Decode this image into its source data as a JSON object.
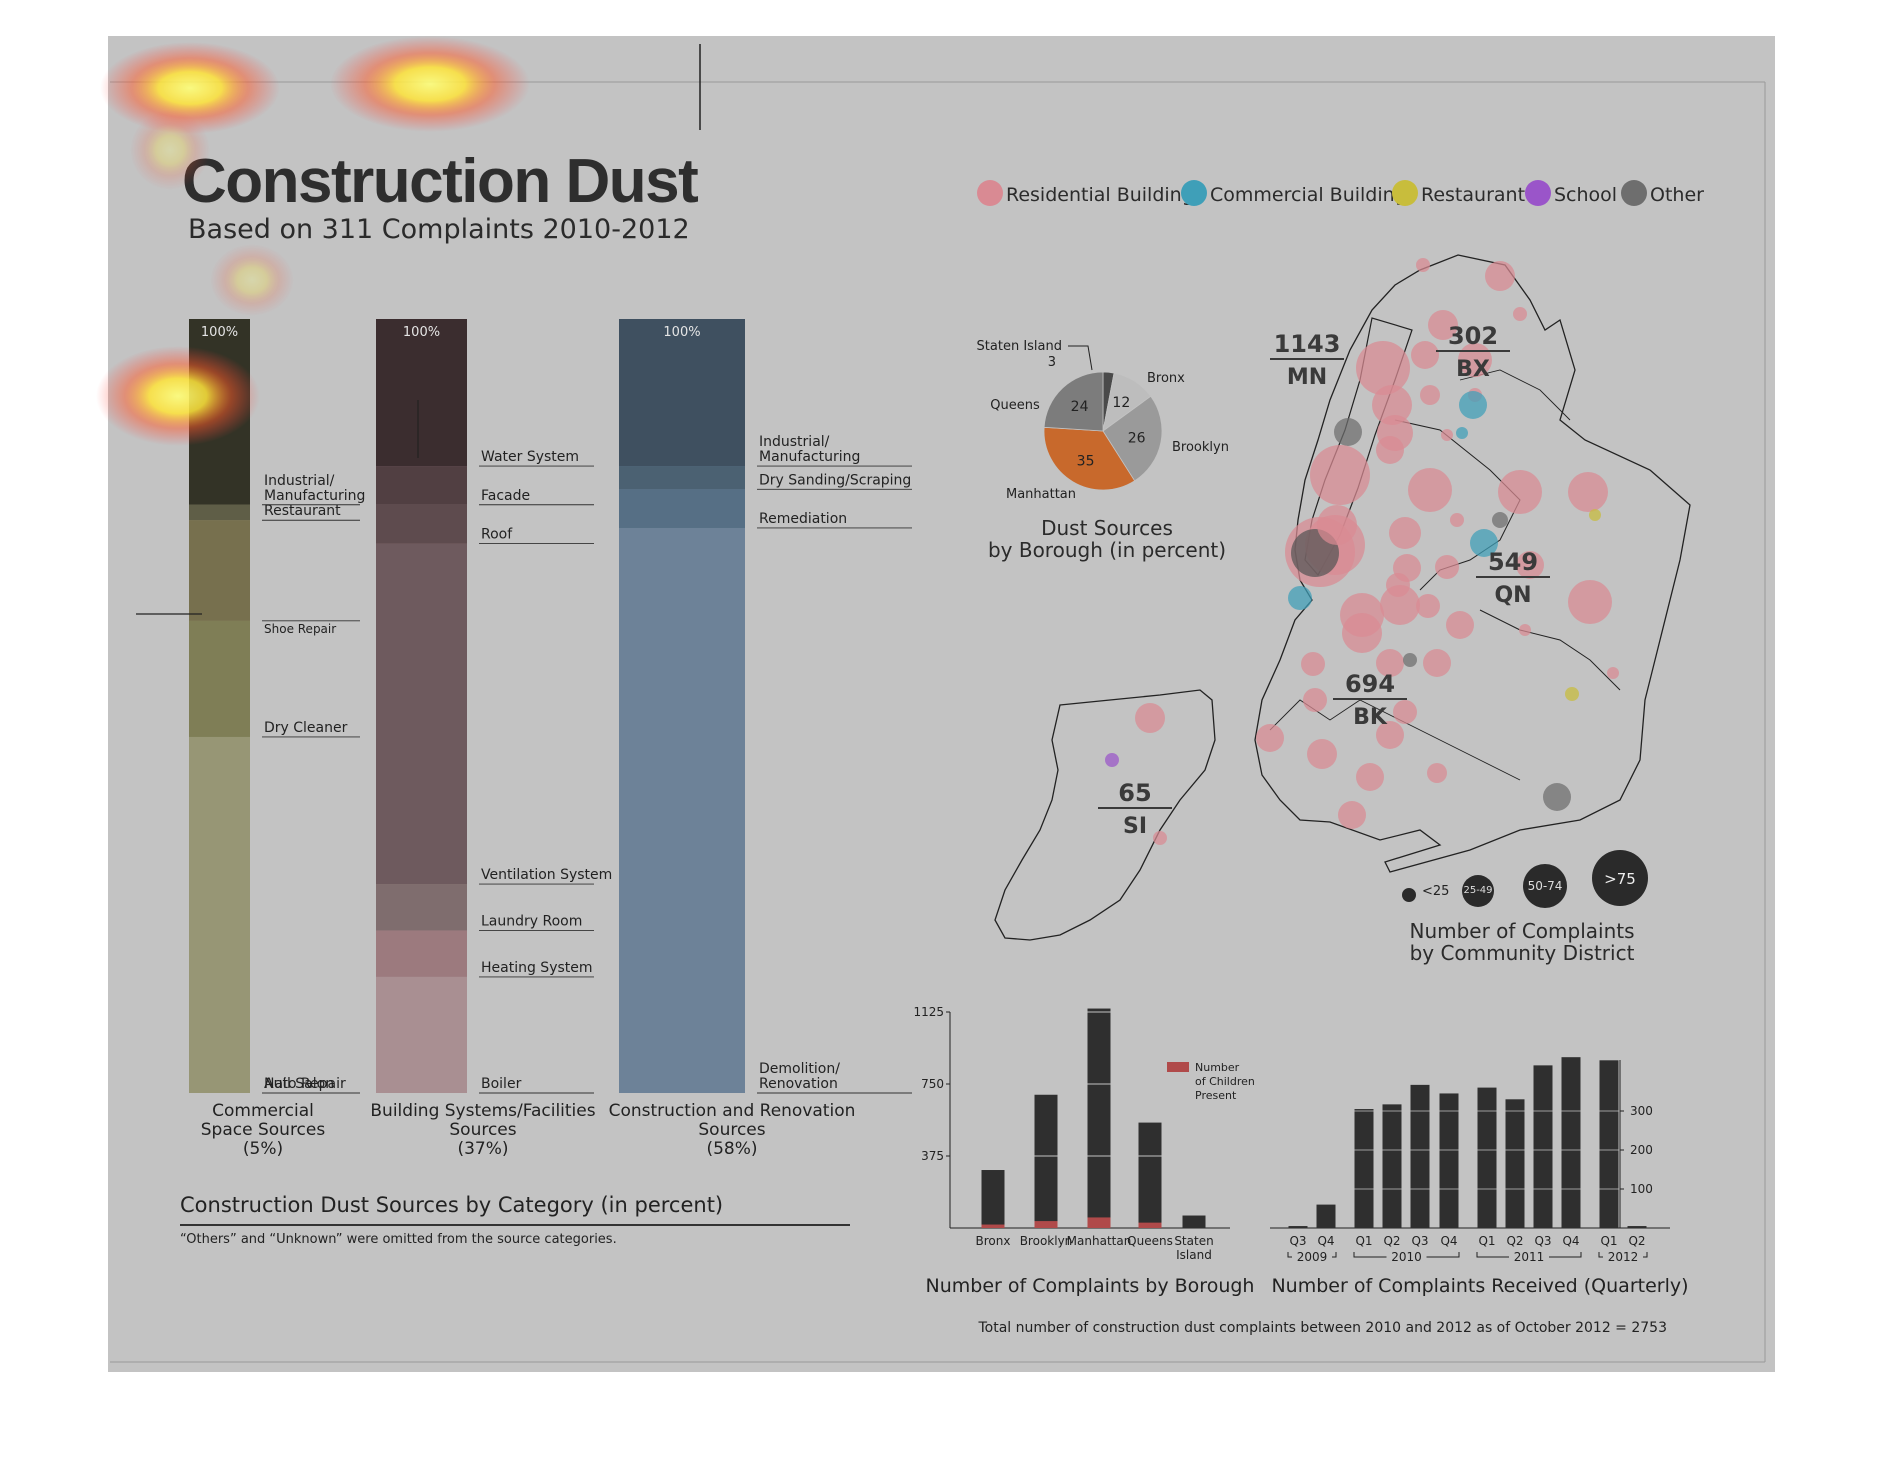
{
  "header": {
    "title": "Construction Dust",
    "subtitle": "Based on 311 Complaints 2010-2012"
  },
  "legend": [
    {
      "label": "Residential Building",
      "color": "#d98a93"
    },
    {
      "label": "Commercial Building",
      "color": "#3f9fb8"
    },
    {
      "label": "Restaurant",
      "color": "#c8bd3c"
    },
    {
      "label": "School",
      "color": "#9a55c9"
    },
    {
      "label": "Other",
      "color": "#6e6e6e"
    }
  ],
  "category_section": {
    "title": "Construction Dust Sources by Category (in percent)",
    "note": "“Others” and “Unknown” were omitted from the source categories.",
    "top_label": "100%"
  },
  "map": {
    "boroughs": [
      {
        "count": "1143",
        "abbr": "MN"
      },
      {
        "count": "302",
        "abbr": "BX"
      },
      {
        "count": "549",
        "abbr": "QN"
      },
      {
        "count": "694",
        "abbr": "BK"
      },
      {
        "count": "65",
        "abbr": "SI"
      }
    ],
    "size_legend": [
      "<25",
      "25-49",
      "50-74",
      ">75"
    ],
    "title_line1": "Number of Complaints",
    "title_line2": "by Community District"
  },
  "footer": {
    "total": "Total number of construction dust complaints between 2010 and 2012 as of October 2012 = 2753"
  },
  "chart_data": [
    {
      "type": "bar",
      "title": "Construction Dust Sources by Category (in percent)",
      "series": [
        {
          "name": "Commercial Space Sources (5%)",
          "caption": [
            "Commercial",
            "Space Sources",
            "(5%)"
          ],
          "segments": [
            {
              "label": "Industrial/ Manufacturing",
              "lines": [
                "Industrial/",
                "Manufacturing"
              ],
              "value": 24,
              "color": "#333326"
            },
            {
              "label": "Restaurant",
              "lines": [
                "Restaurant"
              ],
              "value": 2,
              "color": "#5f5e47"
            },
            {
              "label": "Shoe Repair",
              "lines": [
                "Shoe Repair"
              ],
              "value": 13,
              "color": "#77704e"
            },
            {
              "label": "Dry Cleaner",
              "lines": [
                "Dry Cleaner"
              ],
              "value": 15,
              "color": "#7f7e56"
            },
            {
              "label": "Auto Repair",
              "lines": [
                "Auto Repair"
              ],
              "value": 46,
              "color": "#979675"
            },
            {
              "label": "Nail Salon",
              "lines": [
                "Nail Salon"
              ],
              "value": 0,
              "color": "#979675"
            }
          ]
        },
        {
          "name": "Building Systems/Facilities Sources (37%)",
          "caption": [
            "Building Systems/Facilities",
            "Sources",
            "(37%)"
          ],
          "segments": [
            {
              "label": "Water System",
              "lines": [
                "Water System"
              ],
              "value": 19,
              "color": "#3b2d2f"
            },
            {
              "label": "Facade",
              "lines": [
                "Facade"
              ],
              "value": 5,
              "color": "#513f42"
            },
            {
              "label": "Roof",
              "lines": [
                "Roof"
              ],
              "value": 5,
              "color": "#5e4b4e"
            },
            {
              "label": "Ventilation System",
              "lines": [
                "Ventilation System"
              ],
              "value": 44,
              "color": "#6e5a5e"
            },
            {
              "label": "Laundry Room",
              "lines": [
                "Laundry Room"
              ],
              "value": 6,
              "color": "#7f6d6e"
            },
            {
              "label": "Heating System",
              "lines": [
                "Heating System"
              ],
              "value": 6,
              "color": "#9c7a7e"
            },
            {
              "label": "Boiler",
              "lines": [
                "Boiler"
              ],
              "value": 15,
              "color": "#a98f92"
            }
          ]
        },
        {
          "name": "Construction and Renovation Sources (58%)",
          "caption": [
            "Construction and Renovation",
            "Sources",
            "(58%)"
          ],
          "segments": [
            {
              "label": "Industrial/ Manufacturing",
              "lines": [
                "Industrial/",
                "Manufacturing"
              ],
              "value": 19,
              "color": "#3f5060"
            },
            {
              "label": "Dry Sanding/Scraping",
              "lines": [
                "Dry Sanding/Scraping"
              ],
              "value": 3,
              "color": "#4b6172"
            },
            {
              "label": "Remediation",
              "lines": [
                "Remediation"
              ],
              "value": 5,
              "color": "#566f85"
            },
            {
              "label": "Demolition/ Renovation",
              "lines": [
                "Demolition/",
                "Renovation"
              ],
              "value": 73,
              "color": "#6d8298"
            }
          ]
        }
      ]
    },
    {
      "type": "pie",
      "title": "Dust Sources by Borough (in percent)",
      "title_lines": [
        "Dust Sources",
        "by Borough (in percent)"
      ],
      "slices": [
        {
          "label": "Staten Island",
          "value": 3,
          "color": "#4a4a4a"
        },
        {
          "label": "Bronx",
          "value": 12,
          "color": "#bdbdbd"
        },
        {
          "label": "Brooklyn",
          "value": 26,
          "color": "#9a9a9a"
        },
        {
          "label": "Manhattan",
          "value": 35,
          "color": "#c8692c"
        },
        {
          "label": "Queens",
          "value": 24,
          "color": "#7c7c7c"
        }
      ]
    },
    {
      "type": "bar",
      "title": "Number of Complaints by Borough",
      "categories": [
        "Bronx",
        "Brooklyn",
        "Manhattan",
        "Queens",
        "Staten Island"
      ],
      "category_lines": [
        [
          "Bronx"
        ],
        [
          "Brooklyn"
        ],
        [
          "Manhattan"
        ],
        [
          "Queens"
        ],
        [
          "Staten",
          "Island"
        ]
      ],
      "series": [
        {
          "name": "Number of Complaints",
          "values": [
            302,
            694,
            1143,
            549,
            65
          ],
          "color": "#2f2f2f"
        },
        {
          "name": "Number of Children Present",
          "values": [
            18,
            36,
            55,
            28,
            0
          ],
          "color": "#b04a4a"
        }
      ],
      "legend_lines": [
        "Number",
        "of Children",
        "Present"
      ],
      "yticks": [
        375,
        750,
        1125
      ],
      "ylim": [
        0,
        1125
      ]
    },
    {
      "type": "bar",
      "title": "Number of Complaints Received (Quarterly)",
      "categories": [
        "Q3",
        "Q4",
        "Q1",
        "Q2",
        "Q3",
        "Q4",
        "Q1",
        "Q2",
        "Q3",
        "Q4",
        "Q1",
        "Q2"
      ],
      "groups": [
        {
          "label": "2009",
          "start": 0,
          "end": 1
        },
        {
          "label": "2010",
          "start": 2,
          "end": 5
        },
        {
          "label": "2011",
          "start": 6,
          "end": 9
        },
        {
          "label": "2012",
          "start": 10,
          "end": 11
        }
      ],
      "values": [
        5,
        60,
        305,
        317,
        367,
        345,
        360,
        330,
        417,
        438,
        430,
        5
      ],
      "yticks": [
        100,
        200,
        300
      ],
      "ylim": [
        0,
        440
      ]
    }
  ]
}
